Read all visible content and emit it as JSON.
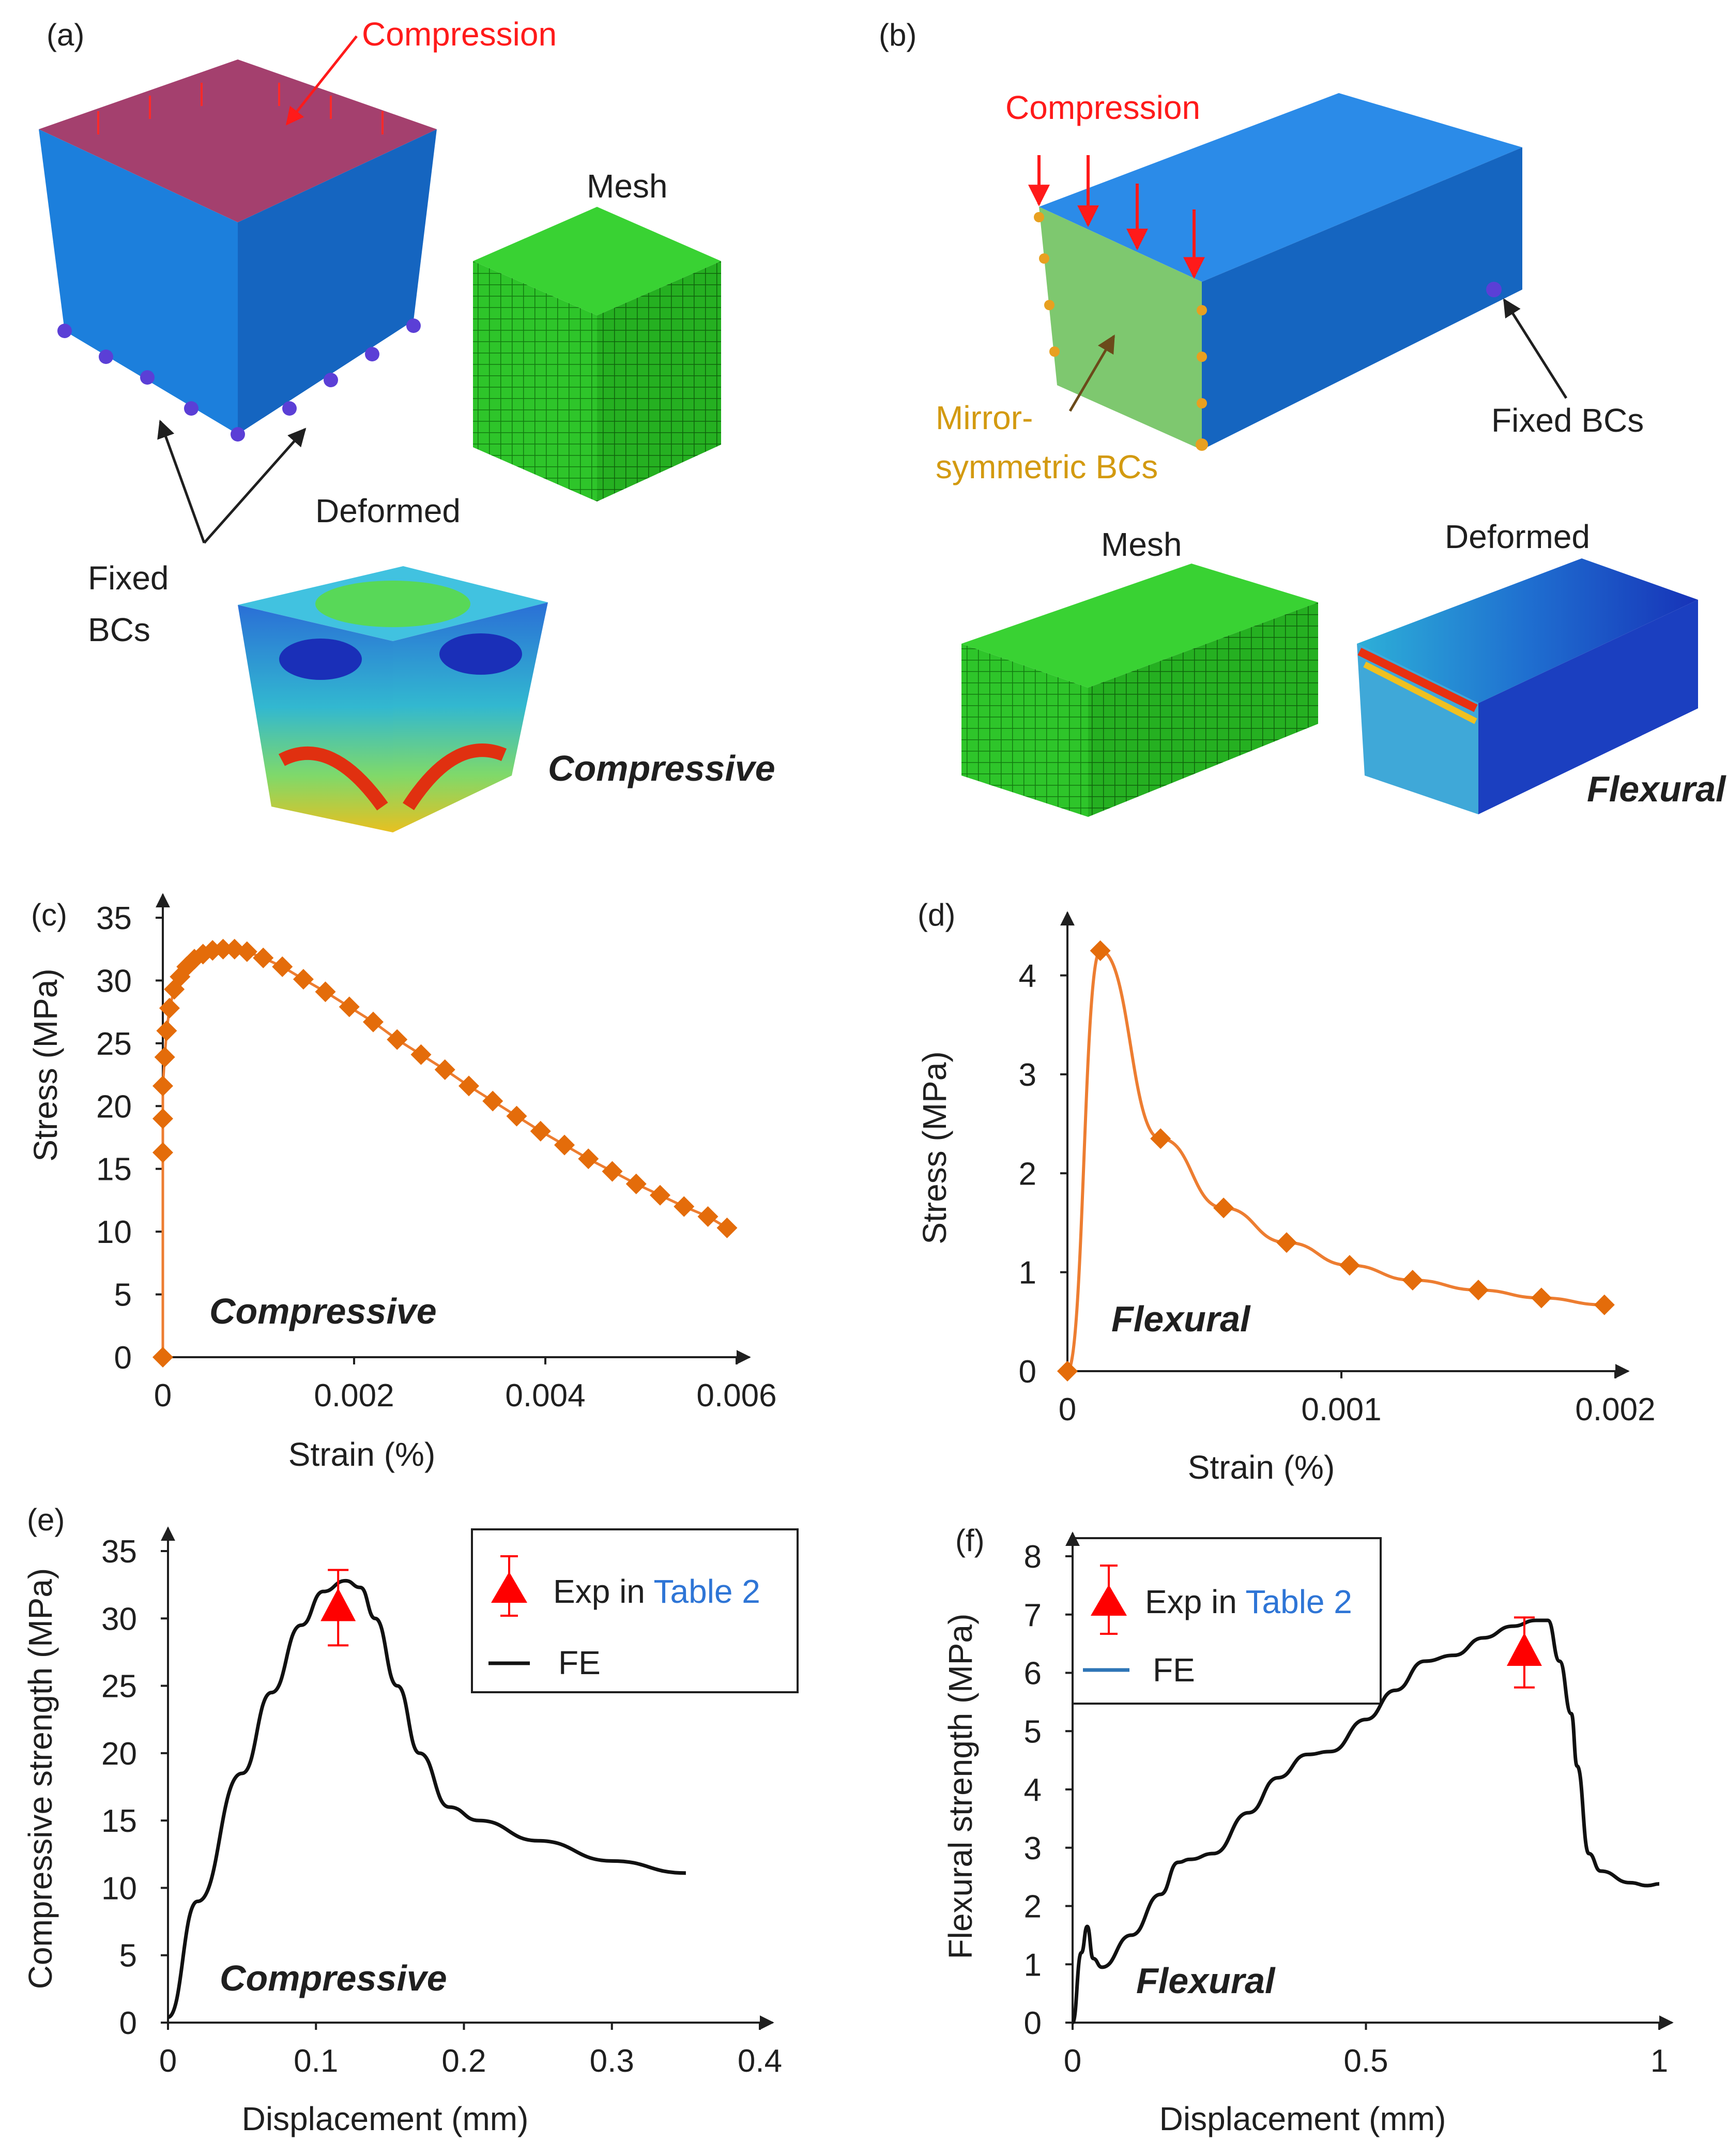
{
  "panels": {
    "a": {
      "label": "(a)",
      "compression": "Compression",
      "mesh": "Mesh",
      "deformed": "Deformed",
      "fixed_line1": "Fixed",
      "fixed_line2": "BCs",
      "mode": "Compressive"
    },
    "b": {
      "label": "(b)",
      "compression": "Compression",
      "mirror_line1": "Mirror-",
      "mirror_line2": "symmetric BCs",
      "fixed": "Fixed BCs",
      "mesh": "Mesh",
      "deformed": "Deformed",
      "mode": "Flexural"
    },
    "c": {
      "label": "(c)",
      "mode": "Compressive"
    },
    "d": {
      "label": "(d)",
      "mode": "Flexural"
    },
    "e": {
      "label": "(e)",
      "mode": "Compressive",
      "legend_exp_prefix": "Exp in ",
      "legend_exp_link": "Table 2",
      "legend_fe": "FE"
    },
    "f": {
      "label": "(f)",
      "mode": "Flexural",
      "legend_exp_prefix": "Exp in ",
      "legend_exp_link": "Table 2",
      "legend_fe": "FE"
    }
  },
  "colors": {
    "series_orange": "#ed7d31",
    "marker_orange": "#e46c0a",
    "fe_black": "#111111",
    "fe_legend_blue": "#2e75b6",
    "exp_red": "#ff0000",
    "table_link_blue": "#2e75d6",
    "block_blue": "#1b7bd8",
    "mesh_green": "#22c51a",
    "top_face": "#a04070"
  },
  "chart_data": [
    {
      "id": "c",
      "type": "scatter",
      "xlabel": "Strain (%)",
      "ylabel": "Stress (MPa)",
      "xlim": [
        0,
        0.006
      ],
      "ylim": [
        0,
        35
      ],
      "xticks": [
        "0",
        "0.002",
        "0.004",
        "0.006"
      ],
      "yticks": [
        "0",
        "5",
        "10",
        "15",
        "20",
        "25",
        "30",
        "35"
      ],
      "series": [
        {
          "x": [
            0,
            0,
            0,
            0,
            2e-05,
            4e-05,
            7e-05,
            0.00012,
            0.00018,
            0.00025,
            0.00033,
            0.00042,
            0.00052,
            0.00063,
            0.00075,
            0.00088,
            0.00105,
            0.00125,
            0.00147,
            0.0017,
            0.00195,
            0.0022,
            0.00245,
            0.0027,
            0.00295,
            0.0032,
            0.00345,
            0.0037,
            0.00395,
            0.0042,
            0.00445,
            0.0047,
            0.00495,
            0.0052,
            0.00545,
            0.0057,
            0.0059
          ],
          "y": [
            0,
            16.3,
            19,
            21.6,
            23.9,
            26,
            27.8,
            29.3,
            30.3,
            31.1,
            31.7,
            32.1,
            32.4,
            32.5,
            32.5,
            32.3,
            31.8,
            31.1,
            30.1,
            29.1,
            27.9,
            26.7,
            25.3,
            24.1,
            22.9,
            21.6,
            20.4,
            19.2,
            18,
            16.9,
            15.8,
            14.8,
            13.8,
            12.9,
            12,
            11.2,
            10.3
          ]
        }
      ]
    },
    {
      "id": "d",
      "type": "line",
      "xlabel": "Strain (%)",
      "ylabel": "Stress (MPa)",
      "xlim": [
        0,
        0.002
      ],
      "ylim": [
        0,
        4.4
      ],
      "xticks": [
        "0",
        "0.001",
        "0.002"
      ],
      "yticks": [
        "0",
        "1",
        "2",
        "3",
        "4"
      ],
      "series": [
        {
          "x": [
            0,
            0.00012,
            0.00034,
            0.00057,
            0.0008,
            0.00103,
            0.00126,
            0.0015,
            0.00173,
            0.00196
          ],
          "y": [
            0,
            4.25,
            2.35,
            1.65,
            1.3,
            1.07,
            0.92,
            0.82,
            0.74,
            0.67
          ]
        }
      ]
    },
    {
      "id": "e",
      "type": "line",
      "xlabel": "Displacement (mm)",
      "ylabel": "Compressive strength (MPa)",
      "xlim": [
        0,
        0.4
      ],
      "ylim": [
        0,
        35
      ],
      "xticks": [
        "0",
        "0.1",
        "0.2",
        "0.3",
        "0.4"
      ],
      "yticks": [
        "0",
        "5",
        "10",
        "15",
        "20",
        "25",
        "30",
        "35"
      ],
      "series": [
        {
          "name": "FE",
          "x": [
            0,
            0.02,
            0.05,
            0.07,
            0.09,
            0.105,
            0.12,
            0.13,
            0.14,
            0.155,
            0.17,
            0.19,
            0.21,
            0.25,
            0.3,
            0.35
          ],
          "y": [
            0.4,
            9,
            18.5,
            24.5,
            29.5,
            32,
            32.8,
            32.3,
            30,
            25,
            20,
            16,
            15,
            13.5,
            12,
            11.1
          ]
        },
        {
          "name": "Exp in Table 2",
          "x": [
            0.115
          ],
          "y": [
            30.8
          ],
          "err": [
            2.8
          ]
        }
      ]
    },
    {
      "id": "f",
      "type": "line",
      "xlabel": "Displacement (mm)",
      "ylabel": "Flexural strength (MPa)",
      "xlim": [
        0,
        1
      ],
      "ylim": [
        0,
        8
      ],
      "xticks": [
        "0",
        "0.5",
        "1"
      ],
      "yticks": [
        "0",
        "1",
        "2",
        "3",
        "4",
        "5",
        "6",
        "7",
        "8"
      ],
      "series": [
        {
          "name": "FE",
          "x": [
            0,
            0.015,
            0.025,
            0.035,
            0.05,
            0.1,
            0.15,
            0.18,
            0.2,
            0.24,
            0.3,
            0.35,
            0.4,
            0.44,
            0.5,
            0.55,
            0.6,
            0.65,
            0.7,
            0.75,
            0.79,
            0.81,
            0.83,
            0.85,
            0.86,
            0.88,
            0.9,
            0.95,
            0.98,
            1.0
          ],
          "y": [
            0,
            1.2,
            1.65,
            1.1,
            0.95,
            1.5,
            2.2,
            2.75,
            2.8,
            2.9,
            3.6,
            4.2,
            4.6,
            4.65,
            5.2,
            5.7,
            6.2,
            6.3,
            6.6,
            6.8,
            6.9,
            6.9,
            6.2,
            5.3,
            4.4,
            2.9,
            2.6,
            2.4,
            2.35,
            2.38
          ]
        },
        {
          "name": "Exp in Table 2",
          "x": [
            0.77
          ],
          "y": [
            6.35
          ],
          "err": [
            0.6
          ]
        }
      ]
    }
  ]
}
